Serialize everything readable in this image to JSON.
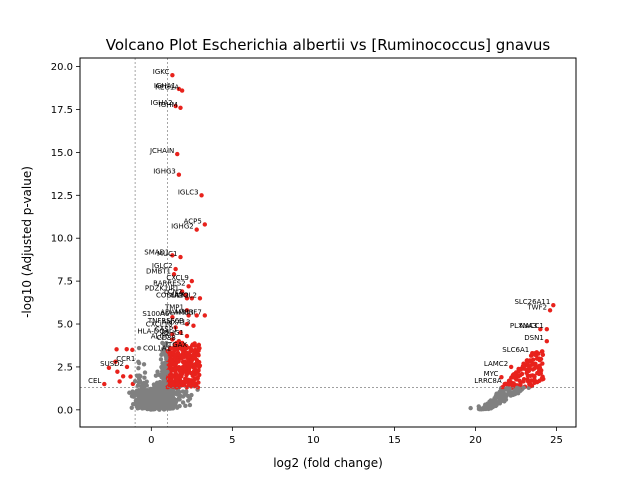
{
  "chart_data": {
    "type": "scatter",
    "title": "Volcano Plot Escherichia albertii vs [Ruminococcus] gnavus",
    "xlabel": "log2 (fold change)",
    "ylabel": "-log10 (Adjusted p-value)",
    "xlim": [
      -4.4,
      26.2
    ],
    "ylim": [
      -1.0,
      20.5
    ],
    "xticks": [
      0,
      5,
      10,
      15,
      20,
      25
    ],
    "yticks": [
      0.0,
      2.5,
      5.0,
      7.5,
      10.0,
      12.5,
      15.0,
      17.5,
      20.0
    ],
    "xtick_labels": [
      "0",
      "5",
      "10",
      "15",
      "20",
      "25"
    ],
    "ytick_labels": [
      "0.0",
      "2.5",
      "5.0",
      "7.5",
      "10.0",
      "12.5",
      "15.0",
      "17.5",
      "20.0"
    ],
    "thresholds": {
      "fc_low": -1,
      "fc_high": 1,
      "padj": 1.3
    },
    "grid": false,
    "colors": {
      "significant": "#e8221c",
      "nonsignificant": "#808080",
      "threshold": "#808080"
    },
    "labeled_points": [
      {
        "label": "IGKC",
        "x": 1.3,
        "y": 19.5
      },
      {
        "label": "IGHA1",
        "x": 1.7,
        "y": 18.7
      },
      {
        "label": "REG1A",
        "x": 1.9,
        "y": 18.6
      },
      {
        "label": "IGHA2",
        "x": 1.5,
        "y": 17.7
      },
      {
        "label": "IGHM",
        "x": 1.8,
        "y": 17.6
      },
      {
        "label": "JCHAIN",
        "x": 1.6,
        "y": 14.9
      },
      {
        "label": "IGHG3",
        "x": 1.7,
        "y": 13.7
      },
      {
        "label": "IGLC3",
        "x": 3.1,
        "y": 12.5
      },
      {
        "label": "ACP5",
        "x": 3.3,
        "y": 10.8
      },
      {
        "label": "IGHG2",
        "x": 2.8,
        "y": 10.5
      },
      {
        "label": "SMAD1",
        "x": 1.3,
        "y": 9.0
      },
      {
        "label": "MUC1",
        "x": 1.8,
        "y": 8.9
      },
      {
        "label": "IGLC2",
        "x": 1.5,
        "y": 8.2
      },
      {
        "label": "DMBT1",
        "x": 1.4,
        "y": 7.9
      },
      {
        "label": "CXCL9",
        "x": 2.5,
        "y": 7.5
      },
      {
        "label": "RARRES2",
        "x": 2.3,
        "y": 7.2
      },
      {
        "label": "PDZK1IP1",
        "x": 1.9,
        "y": 6.9
      },
      {
        "label": "LCN2",
        "x": 2.1,
        "y": 6.7
      },
      {
        "label": "COL6A3",
        "x": 2.2,
        "y": 6.5
      },
      {
        "label": "SULF2",
        "x": 2.5,
        "y": 6.5
      },
      {
        "label": "APOL2",
        "x": 3.0,
        "y": 6.5
      },
      {
        "label": "SLC26A11",
        "x": 24.8,
        "y": 6.1
      },
      {
        "label": "TMP1",
        "x": 2.2,
        "y": 5.8
      },
      {
        "label": "TWF2",
        "x": 24.6,
        "y": 5.8
      },
      {
        "label": "ADAM8",
        "x": 2.3,
        "y": 5.5
      },
      {
        "label": "LAMB3",
        "x": 2.8,
        "y": 5.5
      },
      {
        "label": "IRF7",
        "x": 3.3,
        "y": 5.5
      },
      {
        "label": "S100A6",
        "x": 1.3,
        "y": 5.4
      },
      {
        "label": "TNFRSF6B",
        "x": 2.2,
        "y": 5.0
      },
      {
        "label": "ANXA13",
        "x": 2.6,
        "y": 4.9
      },
      {
        "label": "CXCL10",
        "x": 1.5,
        "y": 4.8
      },
      {
        "label": "PLXNA3",
        "x": 24.0,
        "y": 4.7
      },
      {
        "label": "NACC1",
        "x": 24.4,
        "y": 4.7
      },
      {
        "label": "CASP1",
        "x": 1.8,
        "y": 4.5
      },
      {
        "label": "HLA-DOA",
        "x": 1.3,
        "y": 4.4
      },
      {
        "label": "IGHG1",
        "x": 2.2,
        "y": 4.3
      },
      {
        "label": "ALG6",
        "x": 1.3,
        "y": 4.1
      },
      {
        "label": "CD38",
        "x": 1.7,
        "y": 4.0
      },
      {
        "label": "DSN1",
        "x": 24.4,
        "y": 4.0
      },
      {
        "label": "COL1A1",
        "x": 1.4,
        "y": 3.4
      },
      {
        "label": "ITGAX",
        "x": 2.4,
        "y": 3.6
      },
      {
        "label": "SUSD2",
        "x": -1.5,
        "y": 2.5
      },
      {
        "label": "CCR1",
        "x": -0.8,
        "y": 2.8
      },
      {
        "label": "SLC6A1",
        "x": 23.5,
        "y": 3.3
      },
      {
        "label": "LAMC2",
        "x": 22.2,
        "y": 2.5
      },
      {
        "label": "MYC",
        "x": 21.6,
        "y": 1.9
      },
      {
        "label": "LRRC8A",
        "x": 21.8,
        "y": 1.5
      },
      {
        "label": "CEL",
        "x": -2.9,
        "y": 1.5
      }
    ]
  }
}
